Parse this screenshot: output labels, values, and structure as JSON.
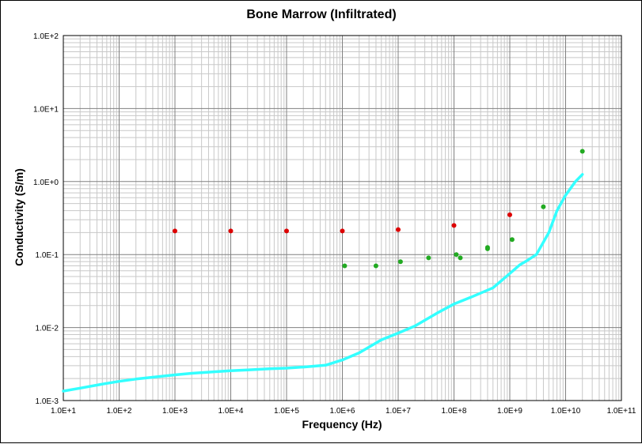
{
  "chart_data": {
    "type": "scatter",
    "title": "Bone Marrow (Infiltrated)",
    "xlabel": "Frequency (Hz)",
    "ylabel": "Conductivity (S/m)",
    "x_scale": "log",
    "y_scale": "log",
    "xlim": [
      10,
      100000000000
    ],
    "ylim": [
      0.001,
      100
    ],
    "x_ticks": [
      {
        "value": 10,
        "label": "1.0E+1"
      },
      {
        "value": 100,
        "label": "1.0E+2"
      },
      {
        "value": 1000,
        "label": "1.0E+3"
      },
      {
        "value": 10000,
        "label": "1.0E+4"
      },
      {
        "value": 100000,
        "label": "1.0E+5"
      },
      {
        "value": 1000000,
        "label": "1.0E+6"
      },
      {
        "value": 10000000,
        "label": "1.0E+7"
      },
      {
        "value": 100000000,
        "label": "1.0E+8"
      },
      {
        "value": 1000000000,
        "label": "1.0E+9"
      },
      {
        "value": 10000000000,
        "label": "1.0E+10"
      },
      {
        "value": 100000000000,
        "label": "1.0E+11"
      }
    ],
    "y_ticks": [
      {
        "value": 0.001,
        "label": "1.0E-3"
      },
      {
        "value": 0.01,
        "label": "1.0E-2"
      },
      {
        "value": 0.1,
        "label": "1.0E-1"
      },
      {
        "value": 1,
        "label": "1.0E+0"
      },
      {
        "value": 10,
        "label": "1.0E+1"
      },
      {
        "value": 100,
        "label": "1.0E+2"
      }
    ],
    "grid": true,
    "legend": "none",
    "series": [
      {
        "kind": "line",
        "color": "#33ffff",
        "points": [
          [
            10,
            0.00135
          ],
          [
            20,
            0.00148
          ],
          [
            50,
            0.00168
          ],
          [
            100,
            0.00183
          ],
          [
            200,
            0.00197
          ],
          [
            500,
            0.00213
          ],
          [
            1000,
            0.00225
          ],
          [
            2000,
            0.00236
          ],
          [
            5000,
            0.00248
          ],
          [
            10000,
            0.00256
          ],
          [
            20000,
            0.00263
          ],
          [
            50000,
            0.00272
          ],
          [
            100000,
            0.00278
          ],
          [
            200000,
            0.00288
          ],
          [
            500000,
            0.00305
          ],
          [
            1000000,
            0.0036
          ],
          [
            2000000,
            0.0045
          ],
          [
            5000000,
            0.0068
          ],
          [
            10000000,
            0.0084
          ],
          [
            20000000,
            0.0105
          ],
          [
            50000000,
            0.0158
          ],
          [
            100000000,
            0.021
          ],
          [
            200000000,
            0.026
          ],
          [
            500000000,
            0.035
          ],
          [
            1000000000,
            0.055
          ],
          [
            1500000000,
            0.072
          ],
          [
            2000000000,
            0.082
          ],
          [
            3000000000,
            0.1
          ],
          [
            5000000000,
            0.2
          ],
          [
            7000000000,
            0.4
          ],
          [
            10000000000,
            0.65
          ],
          [
            15000000000,
            1.0
          ],
          [
            20000000000,
            1.25
          ]
        ]
      },
      {
        "kind": "points",
        "color": "#dd0000",
        "points": [
          [
            1000,
            0.21
          ],
          [
            10000,
            0.21
          ],
          [
            100000,
            0.21
          ],
          [
            1000000,
            0.21
          ],
          [
            10000000,
            0.22
          ],
          [
            100000000,
            0.25
          ],
          [
            1000000000,
            0.35
          ]
        ]
      },
      {
        "kind": "points",
        "color": "#22aa22",
        "points": [
          [
            1100000,
            0.07
          ],
          [
            4000000,
            0.07
          ],
          [
            11000000,
            0.08
          ],
          [
            35000000,
            0.09
          ],
          [
            110000000,
            0.1
          ],
          [
            130000000,
            0.09
          ],
          [
            400000000,
            0.12
          ],
          [
            400000000,
            0.125
          ],
          [
            1100000000,
            0.16
          ],
          [
            4000000000,
            0.45
          ],
          [
            20000000000,
            2.6
          ]
        ]
      }
    ]
  }
}
